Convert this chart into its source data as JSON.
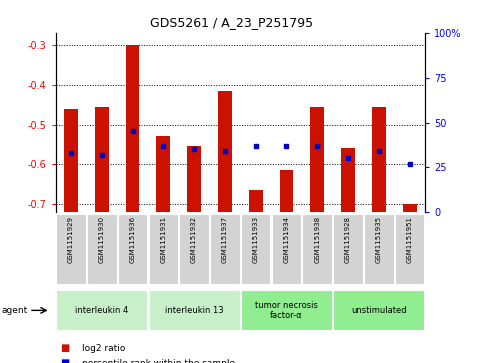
{
  "title": "GDS5261 / A_23_P251795",
  "samples": [
    "GSM1151929",
    "GSM1151930",
    "GSM1151936",
    "GSM1151931",
    "GSM1151932",
    "GSM1151937",
    "GSM1151933",
    "GSM1151934",
    "GSM1151938",
    "GSM1151928",
    "GSM1151935",
    "GSM1151951"
  ],
  "log2_ratios": [
    -0.46,
    -0.455,
    -0.3,
    -0.53,
    -0.555,
    -0.415,
    -0.665,
    -0.615,
    -0.455,
    -0.56,
    -0.455,
    -0.7
  ],
  "percentile_ranks": [
    33,
    32,
    45,
    37,
    35,
    34,
    37,
    37,
    37,
    30,
    34,
    27
  ],
  "agents": [
    {
      "label": "interleukin 4",
      "start": 0,
      "end": 3,
      "color": "#c8f0c8"
    },
    {
      "label": "interleukin 13",
      "start": 3,
      "end": 6,
      "color": "#c8f0c8"
    },
    {
      "label": "tumor necrosis\nfactor-α",
      "start": 6,
      "end": 9,
      "color": "#90ee90"
    },
    {
      "label": "unstimulated",
      "start": 9,
      "end": 12,
      "color": "#90ee90"
    }
  ],
  "ylim_left": [
    -0.72,
    -0.27
  ],
  "ylim_right": [
    0,
    100
  ],
  "bar_color": "#cc1100",
  "dot_color": "#0000cc",
  "left_tick_values": [
    -0.3,
    -0.4,
    -0.5,
    -0.6,
    -0.7
  ],
  "left_tick_labels": [
    "-0.3",
    "-0.4",
    "-0.5",
    "-0.6",
    "-0.7"
  ],
  "right_tick_values": [
    100,
    75,
    50,
    25,
    0
  ],
  "right_tick_labels": [
    "100%",
    "75",
    "50",
    "25",
    "0"
  ]
}
